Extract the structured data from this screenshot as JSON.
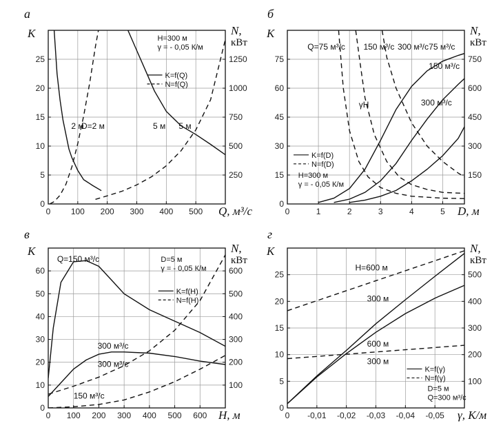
{
  "chart_data": [
    {
      "id": "a",
      "type": "line",
      "panel_label": "а",
      "ylabel_left": "K",
      "ylabel_right": "N,",
      "ylabel_right_unit": "кВт",
      "xlabel": "Q, м³/с",
      "xlim": [
        0,
        600
      ],
      "ylim_left": [
        0,
        30
      ],
      "ylim_right": [
        0,
        1500
      ],
      "xticks": [
        "0",
        "100",
        "200",
        "300",
        "400",
        "500"
      ],
      "xtick_values": [
        0,
        100,
        200,
        300,
        400,
        500
      ],
      "yticks_left": [
        "0",
        "5",
        "10",
        "15",
        "20",
        "25"
      ],
      "ytick_values_left": [
        0,
        5,
        10,
        15,
        20,
        25
      ],
      "yticks_right": [
        "250",
        "500",
        "750",
        "1000",
        "1250"
      ],
      "ytick_values_right": [
        250,
        500,
        750,
        1000,
        1250
      ],
      "legend_params": [
        "H=300 м",
        "γ = - 0,05 К/м"
      ],
      "legend_entries": [
        {
          "label": "K=f(Q)",
          "style": "solid"
        },
        {
          "label": "N=f(Q)",
          "style": "dashed"
        }
      ],
      "annotations": [
        "2 м",
        "D=2 м",
        "5 м",
        "5 м"
      ],
      "series": [
        {
          "axis": "left",
          "style": "solid",
          "x": [
            20,
            30,
            40,
            50,
            60,
            70,
            80,
            100,
            120,
            150,
            180
          ],
          "y": [
            30,
            22.5,
            18,
            14.5,
            12,
            9.5,
            8,
            5.8,
            4.2,
            3.2,
            2.3
          ]
        },
        {
          "axis": "right",
          "style": "dashed",
          "x": [
            5,
            20,
            40,
            60,
            80,
            100,
            120,
            140,
            160,
            170
          ],
          "y": [
            0,
            20,
            75,
            170,
            320,
            520,
            760,
            1040,
            1360,
            1500
          ]
        },
        {
          "axis": "left",
          "style": "solid",
          "x": [
            270,
            300,
            330,
            360,
            400,
            450,
            500,
            550,
            600
          ],
          "y": [
            30,
            26.5,
            23,
            19.5,
            16,
            13.5,
            12,
            10.3,
            8.5
          ]
        },
        {
          "axis": "right",
          "style": "dashed",
          "x": [
            160,
            200,
            250,
            300,
            350,
            400,
            450,
            500,
            550,
            600
          ],
          "y": [
            40,
            70,
            110,
            165,
            235,
            330,
            460,
            640,
            900,
            1420
          ]
        }
      ]
    },
    {
      "id": "b",
      "type": "line",
      "panel_label": "б",
      "ylabel_left": "K",
      "ylabel_right": "N,",
      "ylabel_right_unit": "кВт",
      "xlabel": "D, м",
      "xlim": [
        0,
        5.7
      ],
      "ylim_left": [
        0,
        90
      ],
      "ylim_right": [
        0,
        900
      ],
      "xticks": [
        "0",
        "1",
        "2",
        "3",
        "4",
        "5"
      ],
      "xtick_values": [
        0,
        1,
        2,
        3,
        4,
        5
      ],
      "yticks_left": [
        "0",
        "15",
        "30",
        "45",
        "60",
        "75"
      ],
      "ytick_values_left": [
        0,
        15,
        30,
        45,
        60,
        75
      ],
      "yticks_right": [
        "150",
        "300",
        "450",
        "600",
        "750"
      ],
      "ytick_values_right": [
        150,
        300,
        450,
        600,
        750
      ],
      "legend_params": [
        "H=300 м",
        "γ = - 0,05 К/м"
      ],
      "legend_entries": [
        {
          "label": "K=f(D)",
          "style": "solid"
        },
        {
          "label": "N=f(D)",
          "style": "dashed"
        }
      ],
      "annotations": [
        "Q=75 м³/с",
        "150 м³/с",
        "300 м³/с",
        "75 м³/с",
        "150 м³/с",
        "300 м³/с",
        "γH"
      ],
      "series": [
        {
          "name": "75 м³/с",
          "axis": "left",
          "style": "solid",
          "x": [
            1,
            1.5,
            2,
            2.5,
            3,
            3.5,
            4,
            4.5,
            5,
            5.5,
            5.7
          ],
          "y": [
            0.8,
            3,
            8,
            18,
            33,
            49,
            61,
            69,
            74,
            77,
            78
          ]
        },
        {
          "name": "150 м³/с",
          "axis": "left",
          "style": "solid",
          "x": [
            1.5,
            2,
            2.5,
            3,
            3.5,
            4,
            4.5,
            5,
            5.5,
            5.7
          ],
          "y": [
            0.8,
            2.5,
            6,
            12,
            21,
            33,
            44,
            54,
            62,
            65
          ]
        },
        {
          "name": "300 м³/с",
          "axis": "left",
          "style": "solid",
          "x": [
            2,
            2.5,
            3,
            3.5,
            4,
            4.5,
            5,
            5.5,
            5.7
          ],
          "y": [
            0.8,
            2,
            4,
            7,
            12,
            18,
            25,
            34,
            40
          ]
        },
        {
          "name": "75 м³/с",
          "axis": "right",
          "style": "dashed",
          "x": [
            1.65,
            1.8,
            2,
            2.3,
            2.6,
            3,
            3.5,
            4,
            5,
            5.7
          ],
          "y": [
            900,
            600,
            380,
            220,
            140,
            85,
            55,
            40,
            30,
            28
          ]
        },
        {
          "name": "150 м³/с",
          "axis": "right",
          "style": "dashed",
          "x": [
            2.2,
            2.35,
            2.5,
            2.8,
            3.2,
            3.6,
            4,
            4.5,
            5,
            5.7
          ],
          "y": [
            900,
            720,
            550,
            360,
            220,
            140,
            100,
            75,
            60,
            55
          ]
        },
        {
          "name": "300 м³/с",
          "axis": "right",
          "style": "dashed",
          "x": [
            3.05,
            3.2,
            3.5,
            4,
            4.5,
            5,
            5.5,
            5.7
          ],
          "y": [
            900,
            760,
            600,
            420,
            300,
            220,
            160,
            140
          ]
        }
      ]
    },
    {
      "id": "c",
      "type": "line",
      "panel_label": "в",
      "ylabel_left": "K",
      "ylabel_right": "N,",
      "ylabel_right_unit": "кВт",
      "xlabel": "H, м",
      "xlim": [
        0,
        700
      ],
      "ylim_left": [
        0,
        70
      ],
      "ylim_right": [
        0,
        700
      ],
      "xticks": [
        "0",
        "100",
        "200",
        "300",
        "400",
        "500",
        "600"
      ],
      "xtick_values": [
        0,
        100,
        200,
        300,
        400,
        500,
        600
      ],
      "yticks_left": [
        "0",
        "10",
        "20",
        "30",
        "40",
        "50",
        "60"
      ],
      "ytick_values_left": [
        0,
        10,
        20,
        30,
        40,
        50,
        60
      ],
      "yticks_right": [
        "100",
        "200",
        "300",
        "400",
        "500",
        "600"
      ],
      "ytick_values_right": [
        100,
        200,
        300,
        400,
        500,
        600
      ],
      "legend_params": [
        "D=5 м",
        "γ = - 0,05 К/м"
      ],
      "legend_entries": [
        {
          "label": "K=f(H)",
          "style": "solid"
        },
        {
          "label": "N=f(H)",
          "style": "dashed"
        }
      ],
      "annotations": [
        "Q=150 м³/с",
        "300 м³/с",
        "300 м³/с",
        "150 м³/с"
      ],
      "series": [
        {
          "name": "150 м³/с",
          "axis": "left",
          "style": "solid",
          "x": [
            0,
            20,
            50,
            100,
            150,
            200,
            250,
            300,
            400,
            500,
            600,
            700
          ],
          "y": [
            13,
            35,
            55,
            64,
            64.5,
            62,
            56,
            50,
            43,
            38,
            33,
            27
          ]
        },
        {
          "name": "300 м³/с",
          "axis": "left",
          "style": "solid",
          "x": [
            0,
            50,
            100,
            150,
            200,
            250,
            300,
            400,
            500,
            600,
            700
          ],
          "y": [
            5,
            11,
            17,
            21,
            23.5,
            24.5,
            24.5,
            24,
            22.5,
            20.5,
            19
          ]
        },
        {
          "name": "300 м³/с",
          "axis": "right",
          "style": "dashed",
          "x": [
            0,
            100,
            200,
            300,
            400,
            500,
            600,
            700
          ],
          "y": [
            60,
            95,
            135,
            185,
            250,
            340,
            470,
            670
          ]
        },
        {
          "name": "150 м³/с",
          "axis": "right",
          "style": "dashed",
          "x": [
            0,
            100,
            200,
            300,
            400,
            500,
            600,
            700
          ],
          "y": [
            0,
            5,
            15,
            35,
            70,
            115,
            170,
            230
          ]
        }
      ]
    },
    {
      "id": "d",
      "type": "line",
      "panel_label": "г",
      "ylabel_left": "K",
      "ylabel_right": "N,",
      "ylabel_right_unit": "кВт",
      "xlabel": "γ, К/м",
      "xlim": [
        0,
        -0.06
      ],
      "ylim_left": [
        0,
        30
      ],
      "ylim_right": [
        0,
        600
      ],
      "xticks": [
        "0",
        "-0,01",
        "-0,02",
        "-0,03",
        "-0,04",
        "-0,05"
      ],
      "xtick_values": [
        0,
        -0.01,
        -0.02,
        -0.03,
        -0.04,
        -0.05
      ],
      "yticks_left": [
        "0",
        "5",
        "10",
        "15",
        "20",
        "25"
      ],
      "ytick_values_left": [
        0,
        5,
        10,
        15,
        20,
        25
      ],
      "yticks_right": [
        "100",
        "200",
        "300",
        "400",
        "500"
      ],
      "ytick_values_right": [
        100,
        200,
        300,
        400,
        500
      ],
      "legend_params": [
        "D=5 м",
        "Q=300 м³/с"
      ],
      "legend_entries": [
        {
          "label": "K=f(γ)",
          "style": "solid"
        },
        {
          "label": "N=f(γ)",
          "style": "dashed"
        }
      ],
      "annotations": [
        "H=600 м",
        "300 м",
        "600 м",
        "300 м"
      ],
      "series": [
        {
          "name": "600 м",
          "axis": "left",
          "style": "solid",
          "x": [
            0,
            -0.01,
            -0.02,
            -0.03,
            -0.04,
            -0.05,
            -0.06
          ],
          "y": [
            0.8,
            6,
            10.8,
            15.8,
            20.3,
            24.7,
            29
          ]
        },
        {
          "name": "300 м",
          "axis": "left",
          "style": "solid",
          "x": [
            0,
            -0.01,
            -0.02,
            -0.03,
            -0.04,
            -0.05,
            -0.06
          ],
          "y": [
            0.8,
            5.8,
            10.2,
            14.2,
            17.7,
            20.6,
            23
          ]
        },
        {
          "name": "600 м",
          "axis": "right",
          "style": "dashed",
          "x": [
            0,
            -0.06
          ],
          "y": [
            365,
            590
          ]
        },
        {
          "name": "300 м",
          "axis": "right",
          "style": "dashed",
          "x": [
            0,
            -0.06
          ],
          "y": [
            185,
            235
          ]
        }
      ]
    }
  ]
}
